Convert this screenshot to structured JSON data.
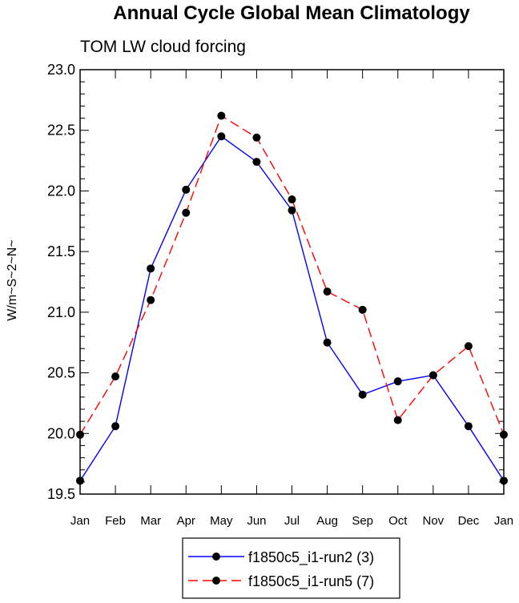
{
  "chart_data": {
    "type": "line",
    "title": "Annual Cycle Global Mean Climatology",
    "subtitle": "TOM LW cloud forcing",
    "xlabel": "",
    "ylabel": "W/m~S~2~N~",
    "categories": [
      "Jan",
      "Feb",
      "Mar",
      "Apr",
      "May",
      "Jun",
      "Jul",
      "Aug",
      "Sep",
      "Oct",
      "Nov",
      "Dec",
      "Jan"
    ],
    "ylim": [
      19.5,
      23.0
    ],
    "yticks": [
      "19.5",
      "20.0",
      "20.5",
      "21.0",
      "21.5",
      "22.0",
      "22.5",
      "23.0"
    ],
    "grid": false,
    "legend_position": "bottom",
    "series": [
      {
        "name": "f1850c5_i1-run2 (3)",
        "color": "#0000ff",
        "line_style": "solid",
        "marker": "filled-circle",
        "values": [
          19.61,
          20.06,
          21.36,
          22.01,
          22.45,
          22.24,
          21.84,
          20.75,
          20.32,
          20.43,
          20.48,
          20.06,
          19.61
        ]
      },
      {
        "name": "f1850c5_i1-run5 (7)",
        "color": "#ff0000",
        "line_style": "dashed",
        "marker": "filled-circle",
        "values": [
          19.99,
          20.47,
          21.1,
          21.82,
          22.62,
          22.44,
          21.93,
          21.17,
          21.02,
          20.11,
          20.48,
          20.72,
          19.99
        ]
      }
    ]
  }
}
